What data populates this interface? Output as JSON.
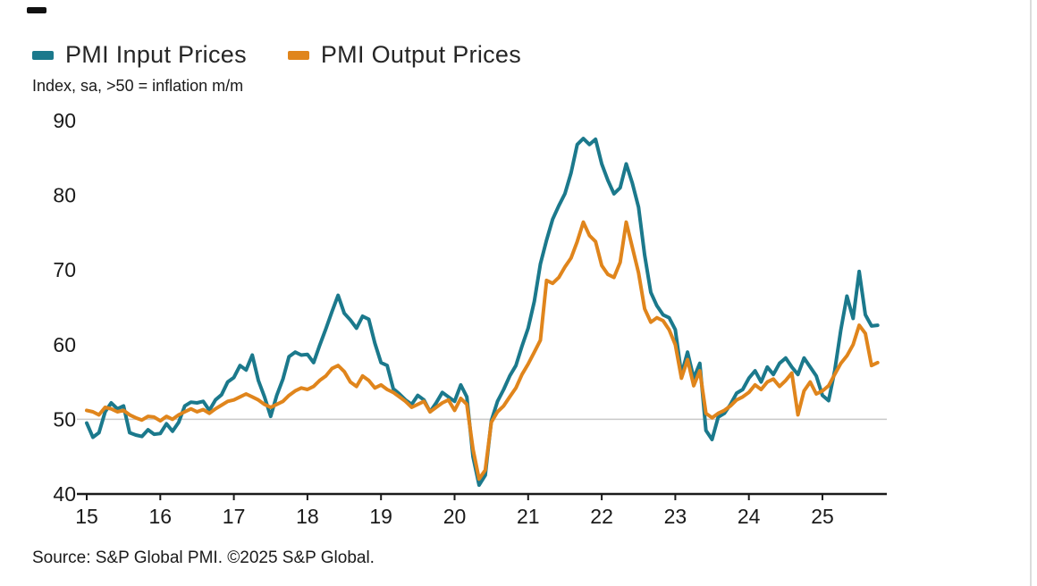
{
  "subtitle": "Index, sa, >50 = inflation m/m",
  "source": "Source: S&P Global PMI. ©2025 S&P Global.",
  "chart_data": {
    "type": "line",
    "subtitle": "Index, sa, >50 = inflation m/m",
    "x_unit": "monthly",
    "x_start": "2015-01",
    "x_end": "2025-10",
    "x_tick_labels": [
      "15",
      "16",
      "17",
      "18",
      "19",
      "20",
      "21",
      "22",
      "23",
      "24",
      "25"
    ],
    "y_ticks": [
      40,
      50,
      60,
      70,
      80,
      90
    ],
    "ylim": [
      40,
      90
    ],
    "reference_line": 50,
    "legend_position": "top-left",
    "grid": "reference line at 50 only",
    "series": [
      {
        "name": "PMI Input Prices",
        "color": "#1b798c",
        "values": [
          49.5,
          47.6,
          48.2,
          51.0,
          52.2,
          51.4,
          51.8,
          48.2,
          47.9,
          47.7,
          48.6,
          48.0,
          48.1,
          49.4,
          48.4,
          49.6,
          51.8,
          52.3,
          52.2,
          52.4,
          51.2,
          52.6,
          53.3,
          55.0,
          55.6,
          57.2,
          56.6,
          58.6,
          55.2,
          53.0,
          50.4,
          53.2,
          55.4,
          58.4,
          59.0,
          58.6,
          58.7,
          57.6,
          59.9,
          62.1,
          64.4,
          66.6,
          64.2,
          63.3,
          62.2,
          63.8,
          63.4,
          60.2,
          57.6,
          57.2,
          54.1,
          53.4,
          52.6,
          52.0,
          53.2,
          52.6,
          51.0,
          52.2,
          53.6,
          53.0,
          52.4,
          54.6,
          53.0,
          45.0,
          41.2,
          42.5,
          49.8,
          52.4,
          54.0,
          55.8,
          57.2,
          59.8,
          62.2,
          65.8,
          70.8,
          74.0,
          76.8,
          78.6,
          80.2,
          83.0,
          86.8,
          87.6,
          86.8,
          87.5,
          84.2,
          82.0,
          80.2,
          81.0,
          84.2,
          81.6,
          78.4,
          72.0,
          67.0,
          65.2,
          64.0,
          63.6,
          62.0,
          56.0,
          59.0,
          55.5,
          57.5,
          48.5,
          47.3,
          50.3,
          50.8,
          52.0,
          53.5,
          54.0,
          55.5,
          56.5,
          55.0,
          57.0,
          56.0,
          57.5,
          58.2,
          57.0,
          56.0,
          58.2,
          57.0,
          55.8,
          53.2,
          52.5,
          56.5,
          62.0,
          66.5,
          63.5,
          69.8,
          64.0,
          62.5,
          62.6
        ]
      },
      {
        "name": "PMI Output Prices",
        "color": "#e0851c",
        "values": [
          51.2,
          51.0,
          50.6,
          51.6,
          51.4,
          51.0,
          51.2,
          50.6,
          50.2,
          49.9,
          50.4,
          50.3,
          49.8,
          50.4,
          50.0,
          50.6,
          51.0,
          51.4,
          51.0,
          51.3,
          50.8,
          51.4,
          51.9,
          52.4,
          52.6,
          53.0,
          53.4,
          53.0,
          52.6,
          52.0,
          51.6,
          52.0,
          52.4,
          53.2,
          53.8,
          54.2,
          54.0,
          54.4,
          55.2,
          55.8,
          56.8,
          57.2,
          56.4,
          55.0,
          54.4,
          55.8,
          55.2,
          54.2,
          54.6,
          54.0,
          53.6,
          53.0,
          52.4,
          51.6,
          52.0,
          52.4,
          51.0,
          51.6,
          52.2,
          52.6,
          51.2,
          52.8,
          52.0,
          46.0,
          42.0,
          43.2,
          49.6,
          51.0,
          51.8,
          53.0,
          54.2,
          56.0,
          57.4,
          59.0,
          60.6,
          68.6,
          68.2,
          69.0,
          70.4,
          71.6,
          73.8,
          76.4,
          74.6,
          73.8,
          70.6,
          69.4,
          69.0,
          71.0,
          76.4,
          73.0,
          69.6,
          64.8,
          63.0,
          63.6,
          63.2,
          62.0,
          60.0,
          55.5,
          58.0,
          54.5,
          56.5,
          50.8,
          50.2,
          50.8,
          51.2,
          51.8,
          52.6,
          53.0,
          53.6,
          54.6,
          54.0,
          55.0,
          55.4,
          54.4,
          55.2,
          56.2,
          50.6,
          53.8,
          55.0,
          53.4,
          53.8,
          54.5,
          56.0,
          57.5,
          58.5,
          60.0,
          62.6,
          61.5,
          57.2,
          57.6
        ]
      }
    ]
  }
}
